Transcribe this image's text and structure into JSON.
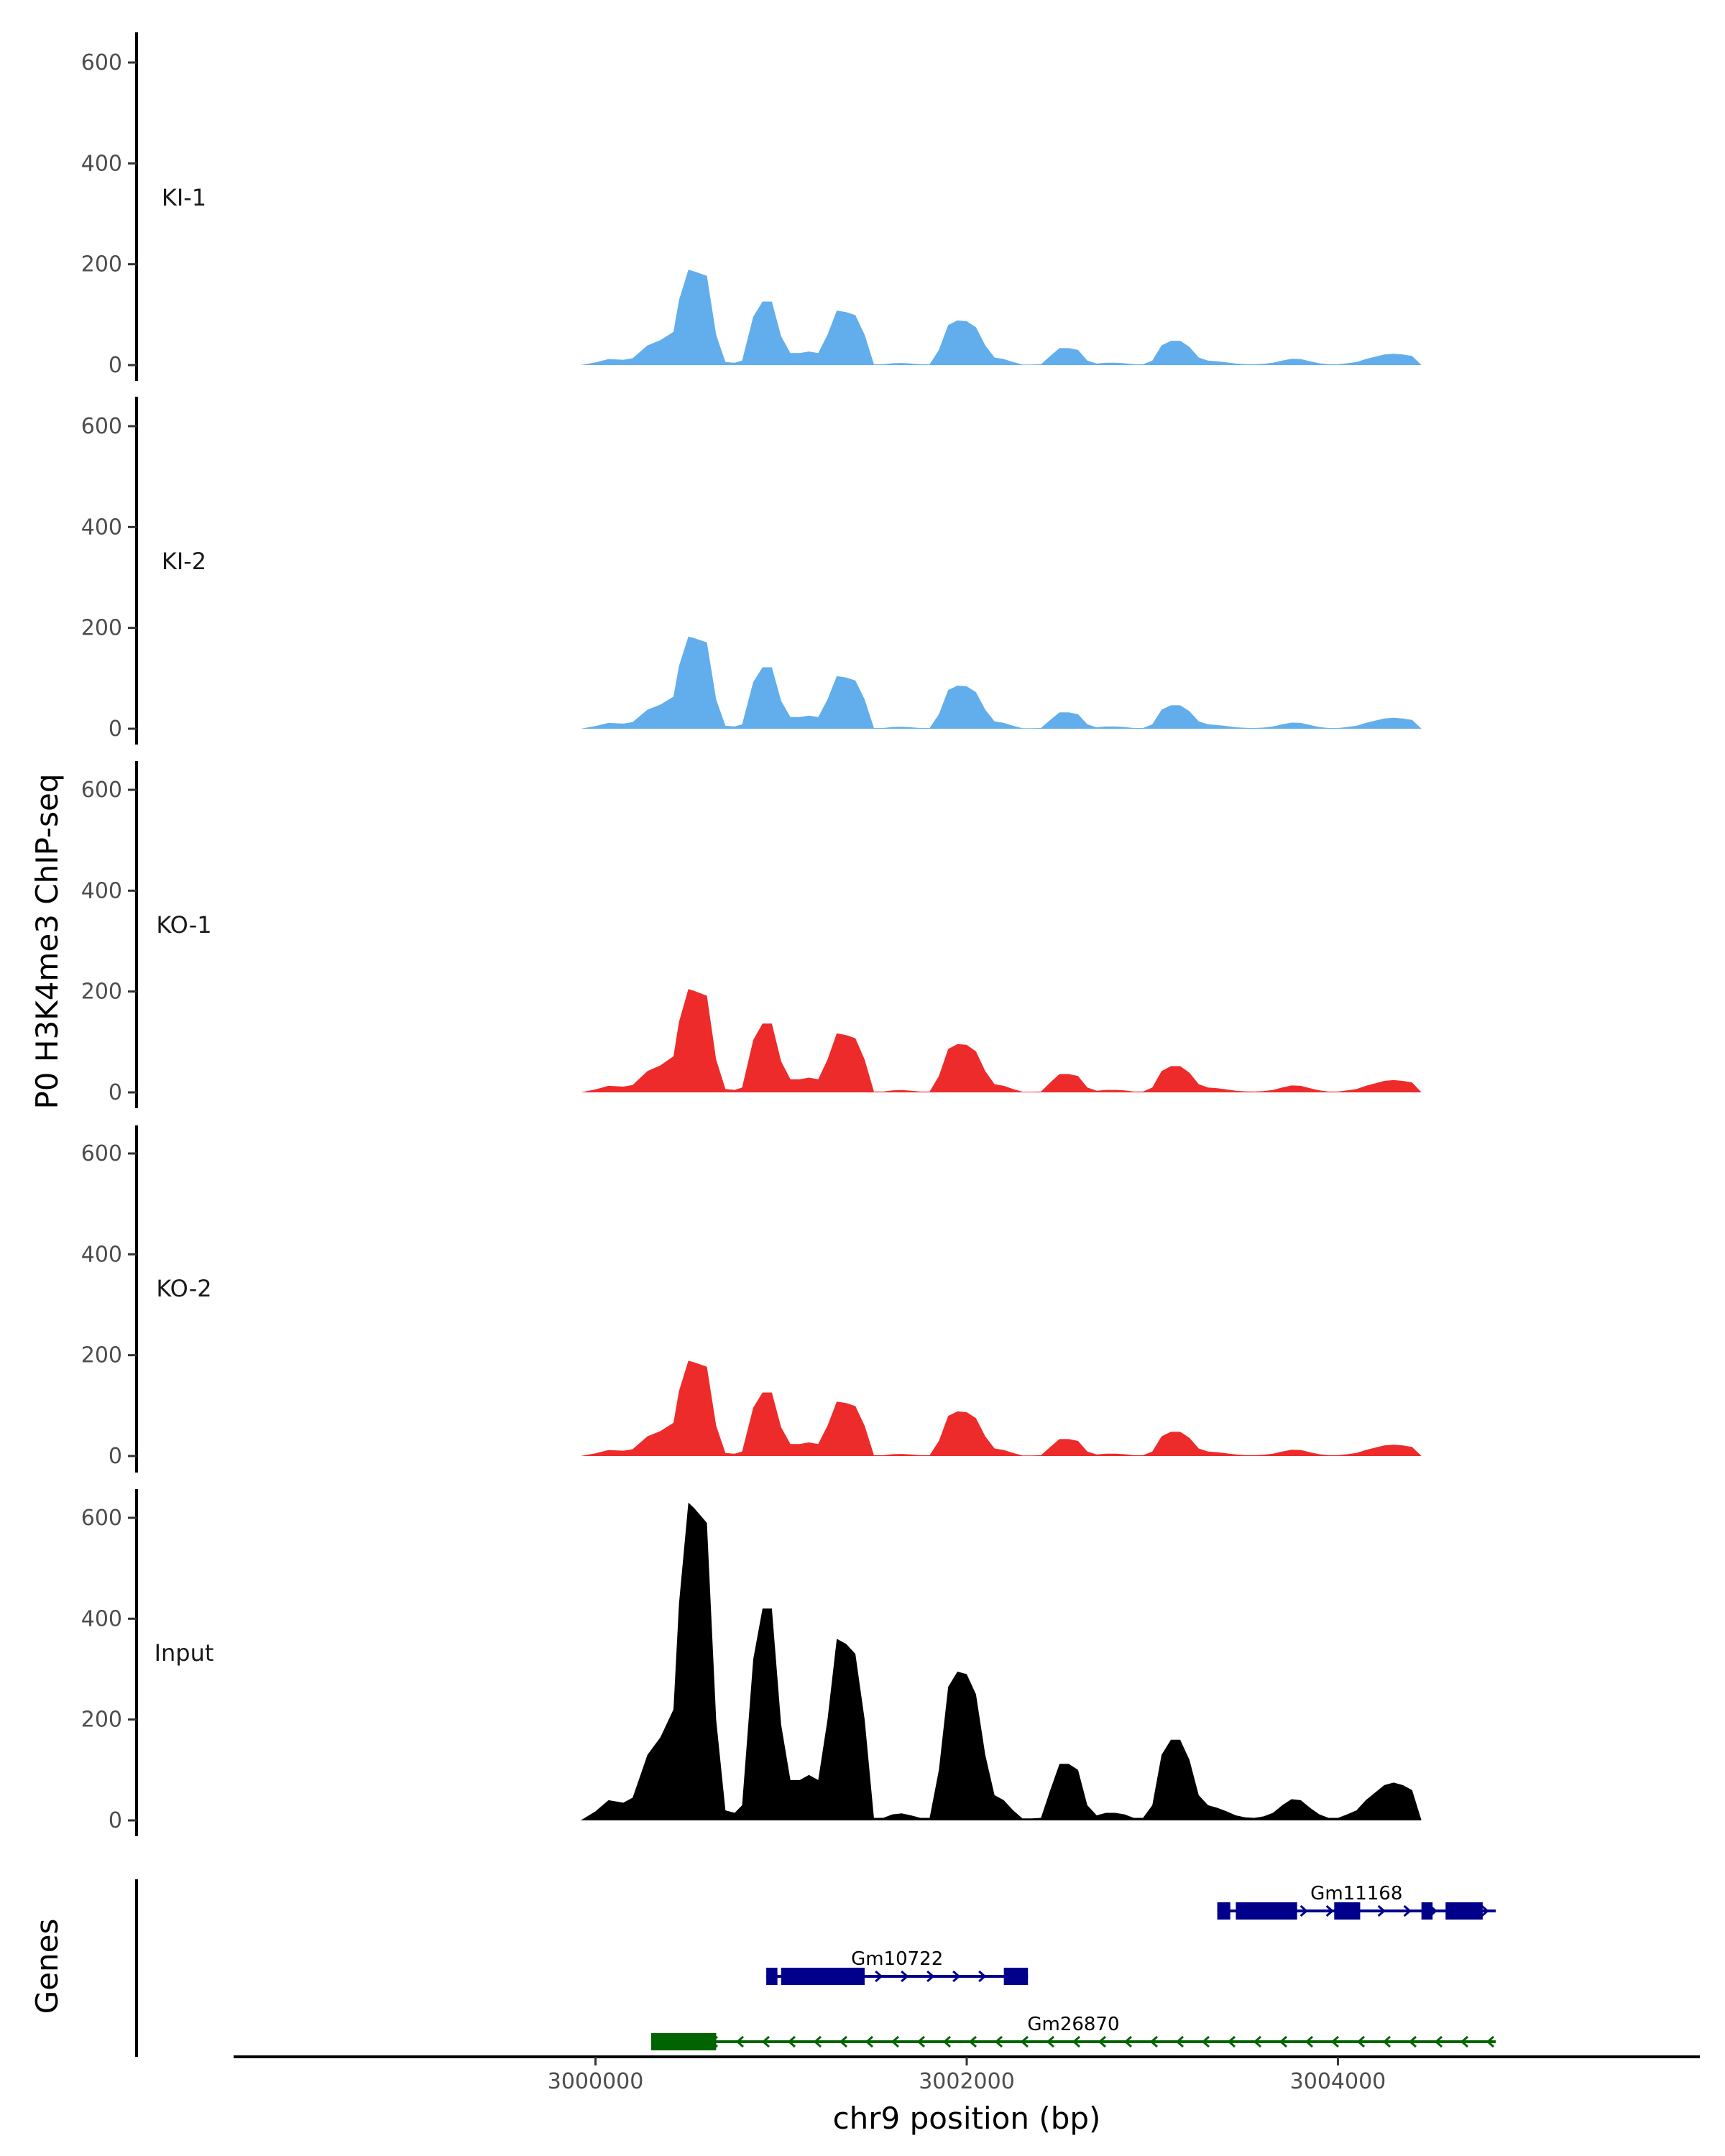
{
  "chart_data": {
    "type": "area",
    "ylabel": "P0 H3K4me3 ChIP-seq",
    "xlabel": "chr9 position (bp)",
    "genes_label": "Genes",
    "xlim": [
      2998050,
      3005950
    ],
    "ylim": [
      0,
      650
    ],
    "y_ticks": [
      0,
      200,
      400,
      600
    ],
    "x_ticks": [
      3000000,
      3002000,
      3004000
    ],
    "x_tick_labels": [
      "3000000",
      "3002000",
      "3004000"
    ],
    "tracks": [
      {
        "name": "KI-1",
        "color": "#62AEEC",
        "scale": 0.3
      },
      {
        "name": "KI-2",
        "color": "#62AEEC",
        "scale": 0.29
      },
      {
        "name": "KO-1",
        "color": "#EE2B2B",
        "scale": 0.325
      },
      {
        "name": "KO-2",
        "color": "#EE2B2B",
        "scale": 0.3
      },
      {
        "name": "Input",
        "color": "#000000",
        "scale": 1.0
      }
    ],
    "input_profile": {
      "x": [
        2999920,
        3000000,
        3000070,
        3000150,
        3000200,
        3000280,
        3000350,
        3000420,
        3000450,
        3000500,
        3000530,
        3000600,
        3000650,
        3000700,
        3000750,
        3000790,
        3000850,
        3000900,
        3000950,
        3001000,
        3001050,
        3001100,
        3001150,
        3001200,
        3001250,
        3001300,
        3001350,
        3001400,
        3001450,
        3001500,
        3001550,
        3001600,
        3001650,
        3001700,
        3001750,
        3001800,
        3001850,
        3001900,
        3001950,
        3002000,
        3002050,
        3002100,
        3002150,
        3002200,
        3002250,
        3002300,
        3002350,
        3002400,
        3002450,
        3002500,
        3002550,
        3002600,
        3002650,
        3002700,
        3002750,
        3002800,
        3002850,
        3002900,
        3002950,
        3003000,
        3003050,
        3003100,
        3003150,
        3003200,
        3003250,
        3003300,
        3003350,
        3003400,
        3003450,
        3003500,
        3003550,
        3003600,
        3003650,
        3003700,
        3003750,
        3003800,
        3003850,
        3003900,
        3003950,
        3004000,
        3004050,
        3004100,
        3004150,
        3004200,
        3004250,
        3004300,
        3004350,
        3004400,
        3004450,
        3004500,
        3004550,
        3004600,
        3004650,
        3004700,
        3004750,
        3004750
      ],
      "y": [
        0,
        18,
        40,
        35,
        45,
        130,
        165,
        220,
        430,
        630,
        620,
        590,
        200,
        20,
        15,
        30,
        320,
        420,
        420,
        190,
        80,
        80,
        90,
        80,
        200,
        360,
        350,
        330,
        200,
        5,
        5,
        12,
        14,
        10,
        5,
        5,
        100,
        265,
        295,
        290,
        250,
        130,
        50,
        40,
        20,
        4,
        4,
        5,
        60,
        112,
        112,
        100,
        30,
        10,
        15,
        15,
        12,
        5,
        5,
        30,
        130,
        160,
        160,
        120,
        50,
        30,
        25,
        18,
        10,
        6,
        5,
        8,
        15,
        30,
        42,
        40,
        25,
        12,
        5,
        5,
        12,
        20,
        40,
        55,
        70,
        75,
        70,
        60,
        0,
        0,
        0,
        0,
        0,
        0,
        0,
        0
      ]
    },
    "genes": [
      {
        "name": "Gm11168",
        "color": "#00008B",
        "strand": "+",
        "start": 3003350,
        "end": 3004850,
        "exons": [
          [
            3003350,
            3003420
          ],
          [
            3003450,
            3003780
          ],
          [
            3003980,
            3004120
          ],
          [
            3004450,
            3004510
          ],
          [
            3004580,
            3004780
          ]
        ]
      },
      {
        "name": "Gm10722",
        "color": "#00008B",
        "strand": "+",
        "start": 3000920,
        "end": 3002330,
        "exons": [
          [
            3000920,
            3000980
          ],
          [
            3001000,
            3001450
          ],
          [
            3002200,
            3002330
          ]
        ]
      },
      {
        "name": "Gm26870",
        "color": "#006400",
        "strand": "-",
        "start": 3000300,
        "end": 3004850,
        "exons": [
          [
            3000300,
            3000650
          ]
        ]
      }
    ]
  }
}
